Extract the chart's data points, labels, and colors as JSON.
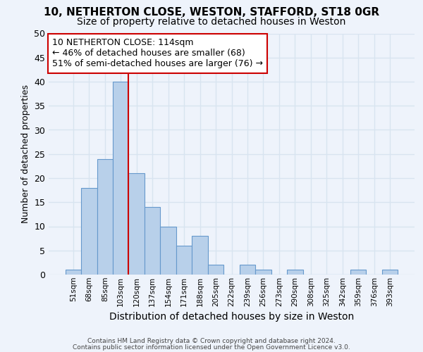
{
  "title1": "10, NETHERTON CLOSE, WESTON, STAFFORD, ST18 0GR",
  "title2": "Size of property relative to detached houses in Weston",
  "xlabel": "Distribution of detached houses by size in Weston",
  "ylabel": "Number of detached properties",
  "bar_values": [
    1,
    18,
    24,
    40,
    21,
    14,
    10,
    6,
    8,
    2,
    0,
    2,
    1,
    0,
    1,
    0,
    0,
    0,
    1,
    0,
    1
  ],
  "bin_labels": [
    "51sqm",
    "68sqm",
    "85sqm",
    "103sqm",
    "120sqm",
    "137sqm",
    "154sqm",
    "171sqm",
    "188sqm",
    "205sqm",
    "222sqm",
    "239sqm",
    "256sqm",
    "273sqm",
    "290sqm",
    "308sqm",
    "325sqm",
    "342sqm",
    "359sqm",
    "376sqm",
    "393sqm"
  ],
  "bar_color": "#b8d0ea",
  "bar_edge_color": "#6699cc",
  "vline_x": 4.0,
  "vline_color": "#cc0000",
  "annotation_text": "10 NETHERTON CLOSE: 114sqm\n← 46% of detached houses are smaller (68)\n51% of semi-detached houses are larger (76) →",
  "annotation_box_facecolor": "#ffffff",
  "annotation_border_color": "#cc0000",
  "ylim_max": 50,
  "yticks": [
    0,
    5,
    10,
    15,
    20,
    25,
    30,
    35,
    40,
    45,
    50
  ],
  "footer1": "Contains HM Land Registry data © Crown copyright and database right 2024.",
  "footer2": "Contains public sector information licensed under the Open Government Licence v3.0.",
  "background_color": "#eef3fb",
  "grid_color": "#d8e4f0",
  "title1_fontsize": 11,
  "title2_fontsize": 10,
  "xlabel_fontsize": 10,
  "ylabel_fontsize": 9
}
